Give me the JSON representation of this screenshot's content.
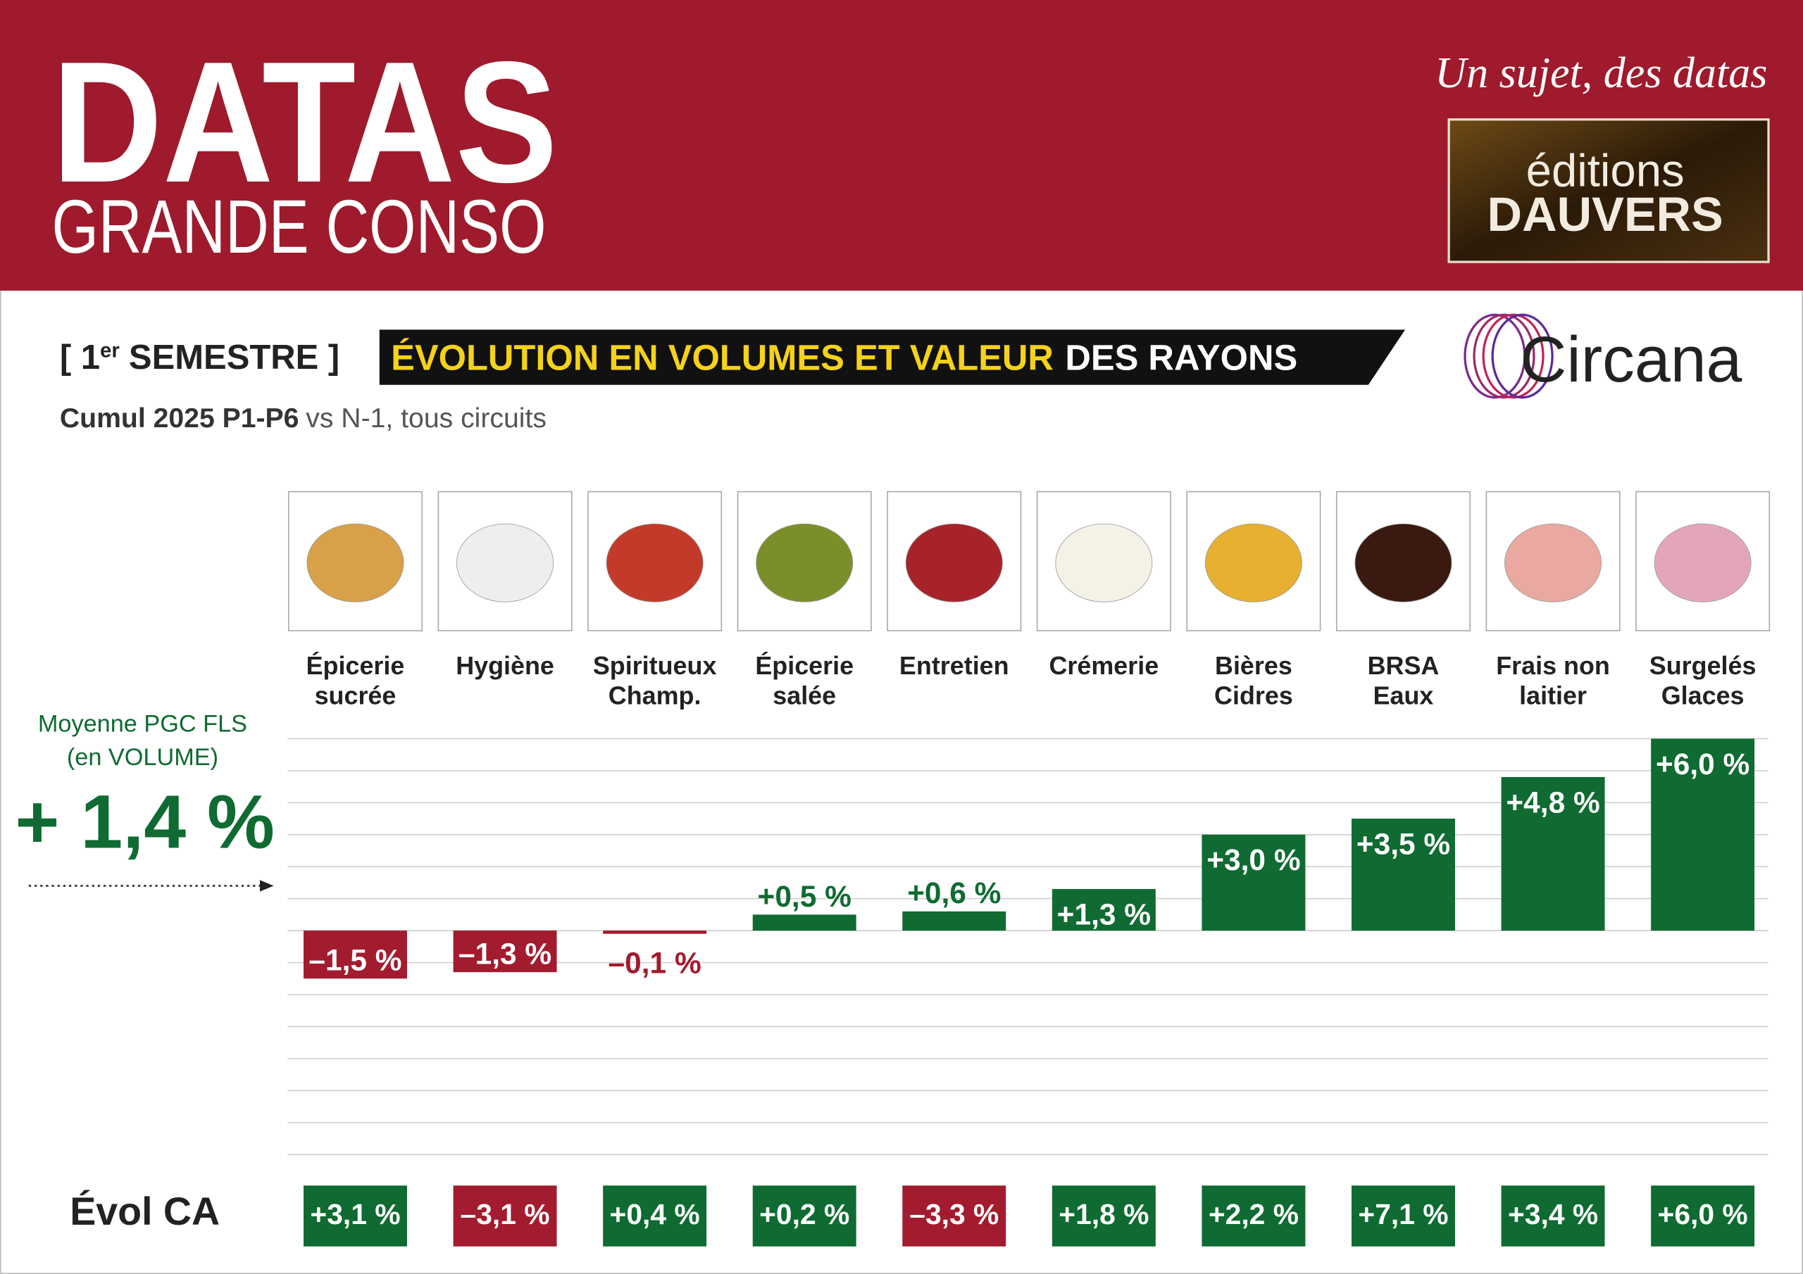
{
  "header": {
    "title": "DATAS",
    "subtitle": "GRANDE CONSO",
    "tagline": "Un sujet, des datas",
    "publisher_top": "éditions",
    "publisher_bottom": "DAUVERS"
  },
  "section": {
    "period_start": "[ 1",
    "period_sup": "er",
    "period_end": "SEMESTRE ]",
    "title_highlight": "ÉVOLUTION EN VOLUMES ET VALEUR",
    "title_rest": "DES RAYONS",
    "scope_bold": "Cumul 2025 P1-P6",
    "scope_rest": "vs N-1, tous circuits",
    "source": "Circana"
  },
  "chart_data": {
    "type": "bar",
    "categories": [
      [
        "Épicerie",
        "sucrée"
      ],
      [
        "Hygiène"
      ],
      [
        "Spiritueux",
        "Champ."
      ],
      [
        "Épicerie",
        "salée"
      ],
      [
        "Entretien"
      ],
      [
        "Crémerie"
      ],
      [
        "Bières",
        "Cidres"
      ],
      [
        "BRSA",
        "Eaux"
      ],
      [
        "Frais non",
        "laitier"
      ],
      [
        "Surgelés",
        "Glaces"
      ]
    ],
    "values": [
      -1.5,
      -1.3,
      -0.1,
      0.5,
      0.6,
      1.3,
      3.0,
      3.5,
      4.8,
      6.0
    ],
    "value_labels": [
      "–1,5 %",
      "–1,3 %",
      "–0,1 %",
      "+0,5 %",
      "+0,6 %",
      "+1,3 %",
      "+3,0 %",
      "+3,5 %",
      "+4,8 %",
      "+6,0 %"
    ],
    "positive_color": "#0f6b31",
    "negative_color": "#a31b2e",
    "ylim": [
      -7,
      6
    ],
    "yticks": [
      -7,
      -6,
      -5,
      -4,
      -3,
      -2,
      -1,
      0,
      1,
      2,
      3,
      4,
      5,
      6
    ],
    "grid": true,
    "average": {
      "label": [
        "Moyenne PGC FLS",
        "(en VOLUME)"
      ],
      "value": 1.4,
      "value_label": "+ 1,4 %"
    },
    "revenue": {
      "label": "Évol CA",
      "values": [
        3.1,
        -3.1,
        0.4,
        0.2,
        -3.3,
        1.8,
        2.2,
        7.1,
        3.4,
        6.0
      ],
      "value_labels": [
        "+3,1 %",
        "–3,1 %",
        "+0,4 %",
        "+0,2 %",
        "–3,3 %",
        "+1,8 %",
        "+2,2 %",
        "+7,1 %",
        "+3,4 %",
        "+6,0 %"
      ]
    }
  }
}
